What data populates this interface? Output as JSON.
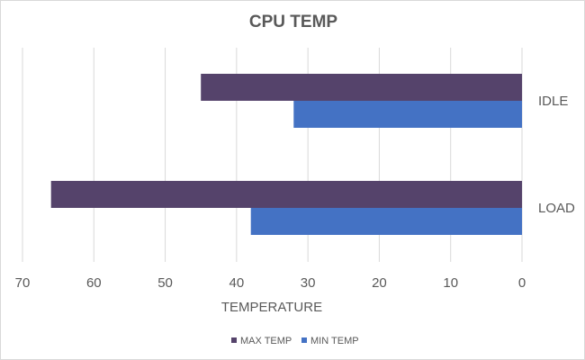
{
  "chart_data": {
    "type": "bar",
    "orientation": "horizontal",
    "title": "CPU TEMP",
    "xlabel": "TEMPERATURE",
    "ylabel": "",
    "categories": [
      "IDLE",
      "LOAD"
    ],
    "series": [
      {
        "name": "MAX TEMP",
        "color": "#55436b",
        "values": [
          45,
          66
        ]
      },
      {
        "name": "MIN TEMP",
        "color": "#4472c4",
        "values": [
          32,
          38
        ]
      }
    ],
    "xlim": [
      0,
      70
    ],
    "x_reversed": true,
    "x_ticks": [
      "70",
      "60",
      "50",
      "40",
      "30",
      "20",
      "10",
      "0"
    ],
    "grid": true,
    "legend": "bottom"
  }
}
